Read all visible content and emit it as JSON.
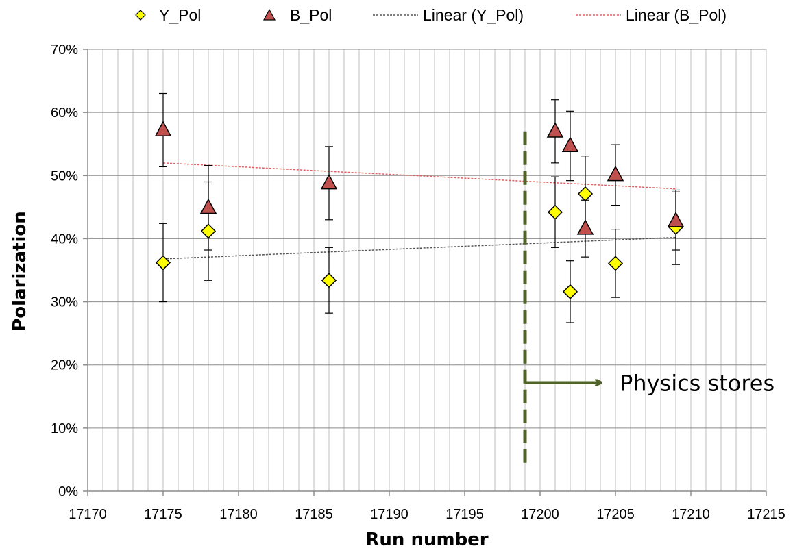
{
  "chart_data": {
    "type": "scatter",
    "xlabel": "Run number",
    "ylabel": "Polarization",
    "xlim": [
      17170,
      17215
    ],
    "ylim": [
      0,
      0.7
    ],
    "x_ticks": [
      "17170",
      "17175",
      "17180",
      "17185",
      "17190",
      "17195",
      "17200",
      "17205",
      "17210",
      "17215"
    ],
    "y_ticks": [
      "0%",
      "10%",
      "20%",
      "30%",
      "40%",
      "50%",
      "60%",
      "70%"
    ],
    "grid": true,
    "legend_position": "top",
    "legend": [
      "Y_Pol",
      "B_Pol",
      "Linear (Y_Pol)",
      "Linear (B_Pol)"
    ],
    "series": [
      {
        "name": "Y_Pol",
        "marker": "diamond",
        "color": "#ffff00",
        "x": [
          17175,
          17178,
          17186,
          17201,
          17202,
          17203,
          17205,
          17209
        ],
        "y": [
          0.362,
          0.412,
          0.334,
          0.442,
          0.316,
          0.471,
          0.361,
          0.418
        ],
        "err": [
          0.062,
          0.078,
          0.052,
          0.056,
          0.049,
          0.06,
          0.054,
          0.059
        ]
      },
      {
        "name": "B_Pol",
        "marker": "triangle",
        "color": "#c0504d",
        "x": [
          17175,
          17178,
          17186,
          17201,
          17202,
          17203,
          17205,
          17209
        ],
        "y": [
          0.572,
          0.449,
          0.488,
          0.57,
          0.547,
          0.416,
          0.501,
          0.428
        ],
        "err": [
          0.058,
          0.067,
          0.058,
          0.05,
          0.055,
          0.045,
          0.048,
          0.046
        ]
      }
    ],
    "trendlines": [
      {
        "name": "Linear (Y_Pol)",
        "color": "#555555",
        "x": [
          17175,
          17209
        ],
        "y": [
          0.368,
          0.402
        ]
      },
      {
        "name": "Linear (B_Pol)",
        "color": "#e06060",
        "x": [
          17175,
          17209
        ],
        "y": [
          0.52,
          0.479
        ]
      }
    ],
    "annotations": [
      {
        "type": "vline",
        "x": 17199,
        "y_range": [
          0.035,
          0.57
        ],
        "color": "#4f6228"
      },
      {
        "type": "arrow",
        "x_from": 17199,
        "x_to": 17204,
        "y": 0.172,
        "color": "#4f6228",
        "text": "Physics stores"
      }
    ]
  }
}
